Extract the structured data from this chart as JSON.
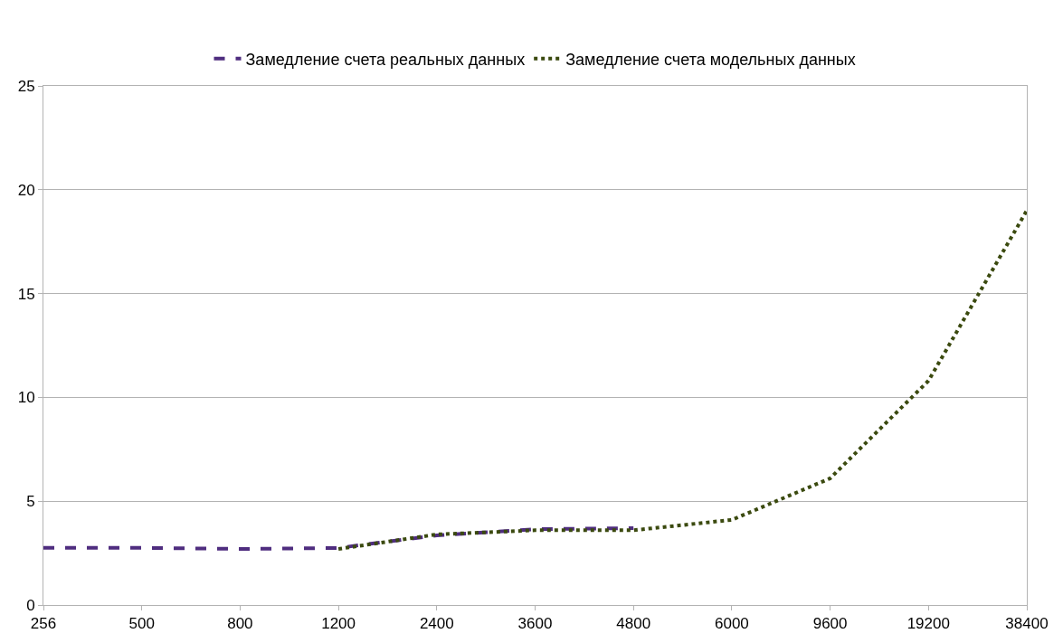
{
  "chart_data": {
    "type": "line",
    "categories": [
      "256",
      "500",
      "800",
      "1200",
      "2400",
      "3600",
      "4800",
      "6000",
      "9600",
      "19200",
      "38400"
    ],
    "series": [
      {
        "name": "Замедление счета реальных данных",
        "color": "#4f2d7f",
        "line_style": "dashed",
        "values": [
          2.75,
          2.75,
          2.7,
          2.75,
          3.35,
          3.65,
          3.7,
          null,
          null,
          null,
          null
        ]
      },
      {
        "name": "Замедление счета модельных данных",
        "color": "#3b4a0f",
        "line_style": "dotted",
        "values": [
          null,
          null,
          null,
          2.7,
          3.4,
          3.6,
          3.6,
          4.1,
          6.1,
          10.8,
          19.0
        ]
      }
    ],
    "ylim": [
      0,
      25
    ],
    "yticks": [
      0,
      5,
      10,
      15,
      20,
      25
    ],
    "grid": "y",
    "legend": "top",
    "marker": "none"
  }
}
